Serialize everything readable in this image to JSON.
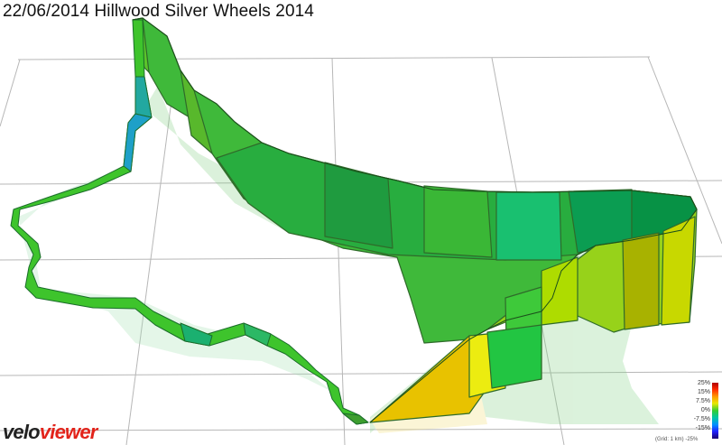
{
  "title": "22/06/2014 Hillwood Silver Wheels 2014",
  "logo": {
    "part1": "velo",
    "part2": "viewer"
  },
  "legend": {
    "labels": [
      "25%",
      "15%",
      "7.5%",
      "0%",
      "-7.5%",
      "-15%",
      "-25%"
    ],
    "grid_note": "(Grid: 1 km)"
  },
  "colors": {
    "background": "#ffffff",
    "grid": "#b8b8b8",
    "logo_dark": "#222222",
    "logo_red": "#e2231a"
  }
}
